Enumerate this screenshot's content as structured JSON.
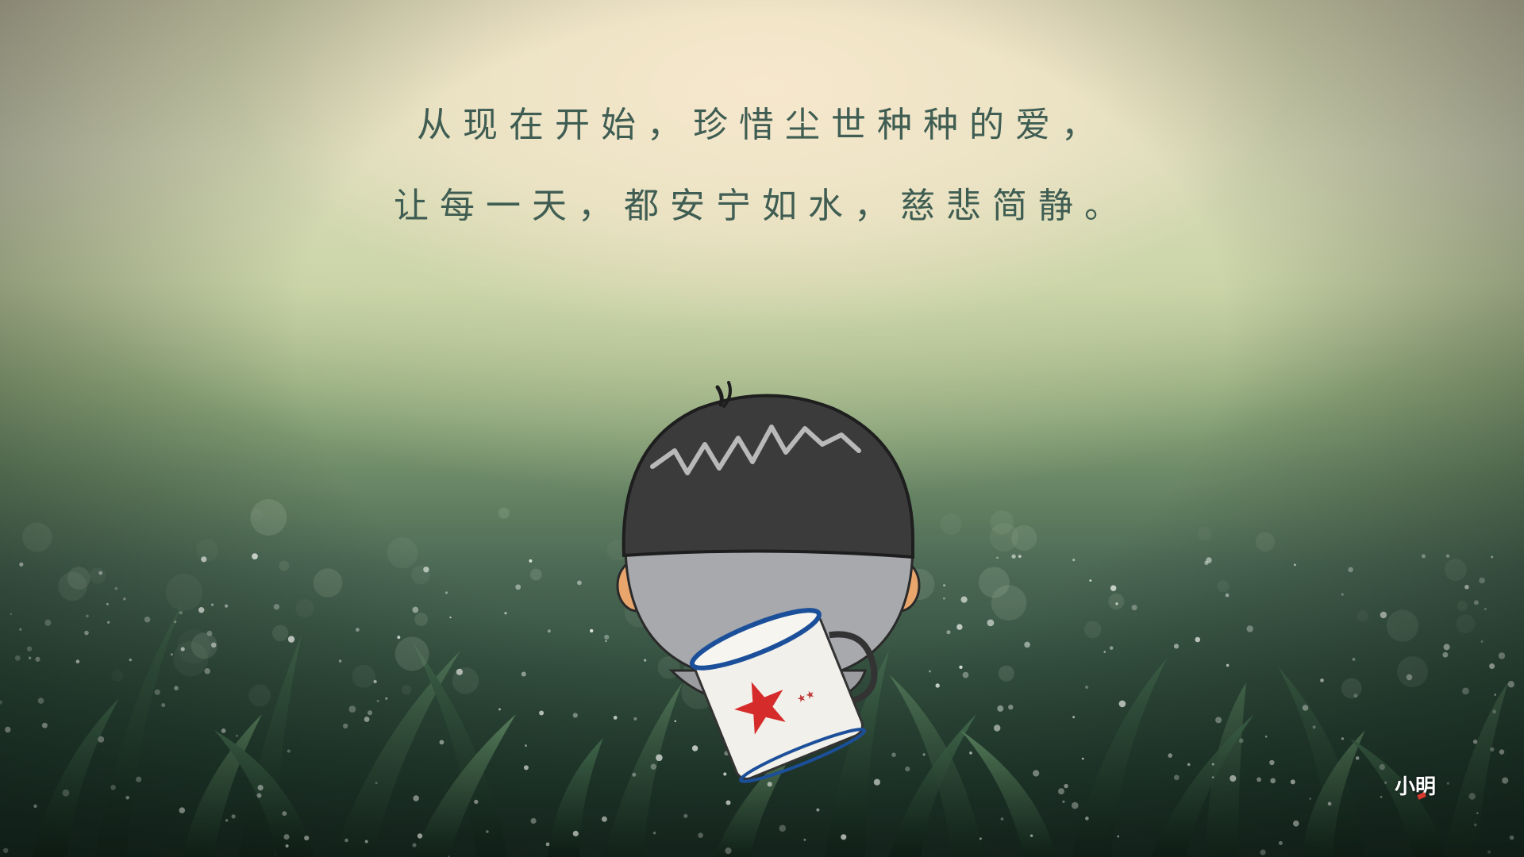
{
  "caption": {
    "line1": "从现在开始，珍惜尘世种种的爱，",
    "line2": "让每一天，都安宁如水，慈悲简静。"
  },
  "signature": {
    "text": "小明"
  },
  "colors": {
    "caption_text": "#3f5d52",
    "sky_glow": "#eadbc0",
    "grass_dark": "#17271f",
    "hair": "#3b3b3b",
    "mug_star": "#d62b2b"
  },
  "illustration": {
    "subject_icon": "cartoon-boy-back-icon",
    "mug_icon": "enamel-mug-star-icon"
  }
}
